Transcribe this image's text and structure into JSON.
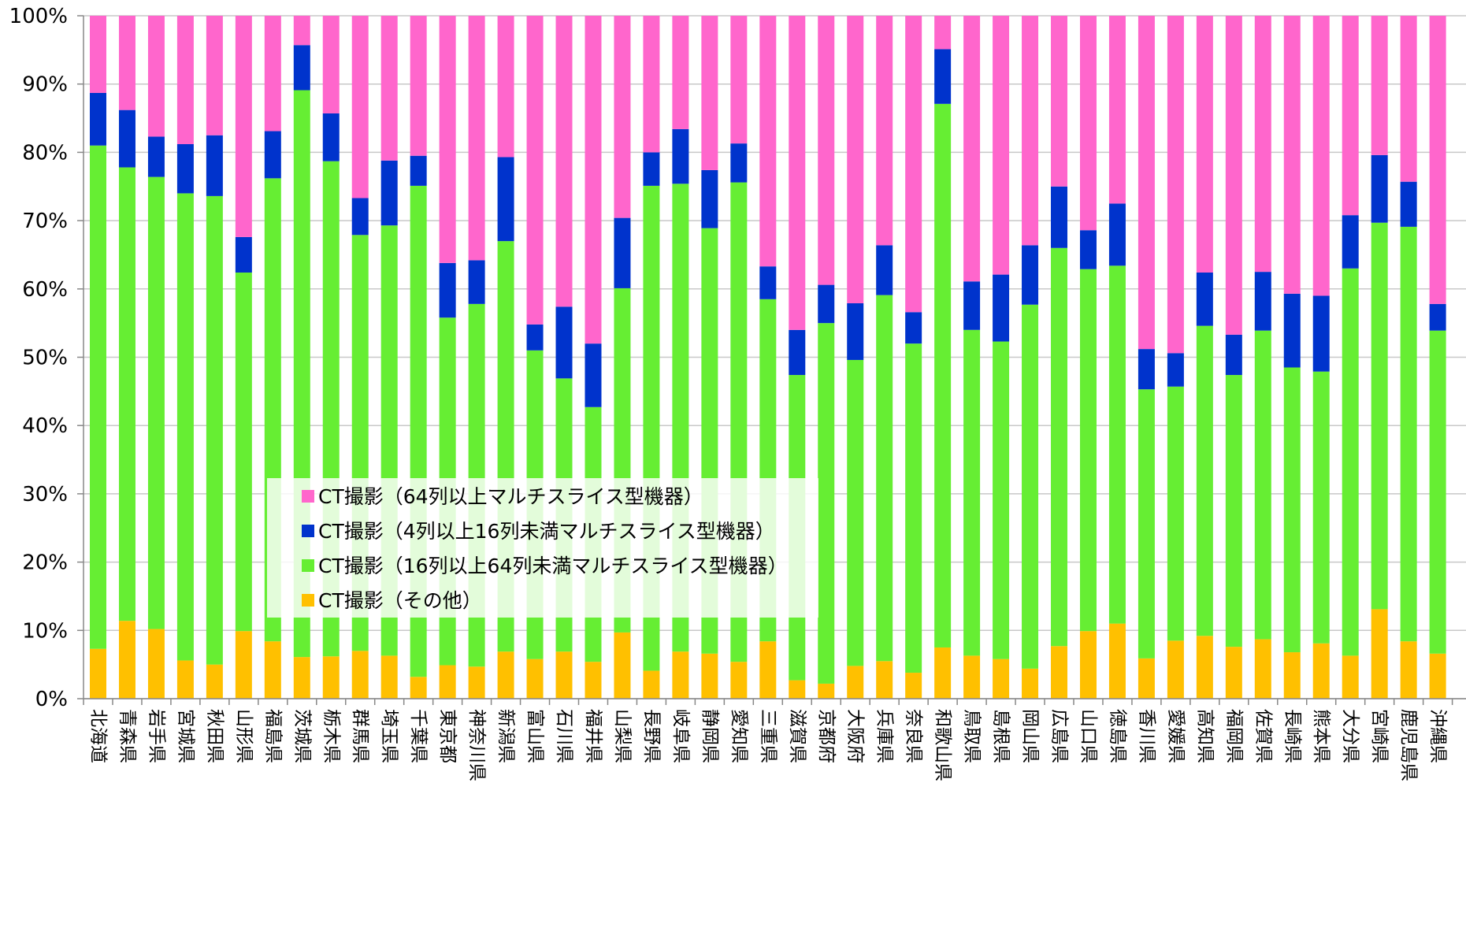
{
  "chart_data": {
    "type": "bar",
    "stacked": true,
    "percent": true,
    "ylim": [
      0,
      100
    ],
    "yticks": [
      "0%",
      "10%",
      "20%",
      "30%",
      "40%",
      "50%",
      "60%",
      "70%",
      "80%",
      "90%",
      "100%"
    ],
    "grid": true,
    "legend_position": "bottom-center-inside",
    "categories": [
      "北海道",
      "青森県",
      "岩手県",
      "宮城県",
      "秋田県",
      "山形県",
      "福島県",
      "茨城県",
      "栃木県",
      "群馬県",
      "埼玉県",
      "千葉県",
      "東京都",
      "神奈川県",
      "新潟県",
      "富山県",
      "石川県",
      "福井県",
      "山梨県",
      "長野県",
      "岐阜県",
      "静岡県",
      "愛知県",
      "三重県",
      "滋賀県",
      "京都府",
      "大阪府",
      "兵庫県",
      "奈良県",
      "和歌山県",
      "鳥取県",
      "島根県",
      "岡山県",
      "広島県",
      "山口県",
      "徳島県",
      "香川県",
      "愛媛県",
      "高知県",
      "福岡県",
      "佐賀県",
      "長崎県",
      "熊本県",
      "大分県",
      "宮崎県",
      "鹿児島県",
      "沖縄県"
    ],
    "series": [
      {
        "name": "CT撮影（その他）",
        "color": "#FFC000",
        "values": [
          7.3,
          11.4,
          10.2,
          5.6,
          5.0,
          9.9,
          8.4,
          6.1,
          6.2,
          7.0,
          6.3,
          3.2,
          4.9,
          4.7,
          6.9,
          5.8,
          6.9,
          5.4,
          9.7,
          4.1,
          6.9,
          6.6,
          5.4,
          8.4,
          2.7,
          2.2,
          4.8,
          5.5,
          3.8,
          7.5,
          6.3,
          5.8,
          4.4,
          7.7,
          9.9,
          11.0,
          5.9,
          8.5,
          9.2,
          7.6,
          8.7,
          6.8,
          8.1,
          6.3,
          13.1,
          8.4,
          6.6
        ]
      },
      {
        "name": "CT撮影（16列以上64列未満マルチスライス型機器）",
        "color": "#66EE33",
        "values": [
          73.7,
          66.4,
          66.2,
          68.4,
          68.6,
          52.5,
          67.8,
          83.0,
          72.5,
          60.9,
          63.0,
          71.9,
          50.9,
          53.1,
          60.1,
          45.2,
          40.0,
          37.3,
          50.4,
          71.0,
          68.5,
          62.3,
          70.2,
          50.1,
          44.7,
          52.8,
          44.8,
          53.6,
          48.2,
          79.6,
          47.7,
          46.5,
          53.3,
          58.3,
          53.0,
          52.4,
          39.4,
          37.2,
          45.4,
          39.8,
          45.2,
          41.7,
          39.8,
          56.7,
          56.6,
          60.7,
          47.3
        ]
      },
      {
        "name": "CT撮影（4列以上16列未満マルチスライス型機器）",
        "color": "#0033CC",
        "values": [
          7.7,
          8.4,
          5.9,
          7.2,
          8.9,
          5.2,
          6.9,
          6.6,
          7.0,
          5.4,
          9.5,
          4.4,
          8.0,
          6.4,
          12.3,
          3.8,
          10.5,
          9.3,
          10.3,
          4.9,
          8.0,
          8.5,
          5.7,
          4.8,
          6.6,
          5.6,
          8.3,
          7.3,
          4.6,
          8.0,
          7.1,
          9.8,
          8.7,
          9.0,
          5.7,
          9.1,
          5.9,
          4.9,
          7.8,
          5.9,
          8.6,
          10.8,
          11.1,
          7.8,
          9.9,
          6.6,
          3.9
        ]
      },
      {
        "name": "CT撮影（64列以上マルチスライス型機器）",
        "color": "#FF66CC",
        "values": [
          11.3,
          13.8,
          17.7,
          18.8,
          17.5,
          32.4,
          16.9,
          4.3,
          14.3,
          26.7,
          21.2,
          20.5,
          36.2,
          35.8,
          20.7,
          45.2,
          42.6,
          48.0,
          29.6,
          20.0,
          16.6,
          22.6,
          18.7,
          36.7,
          46.0,
          39.4,
          42.1,
          33.6,
          43.4,
          4.9,
          38.9,
          37.9,
          33.6,
          25.0,
          31.4,
          27.5,
          48.8,
          49.4,
          37.6,
          46.7,
          37.5,
          40.7,
          41.0,
          29.2,
          20.4,
          24.3,
          42.2
        ]
      }
    ]
  }
}
